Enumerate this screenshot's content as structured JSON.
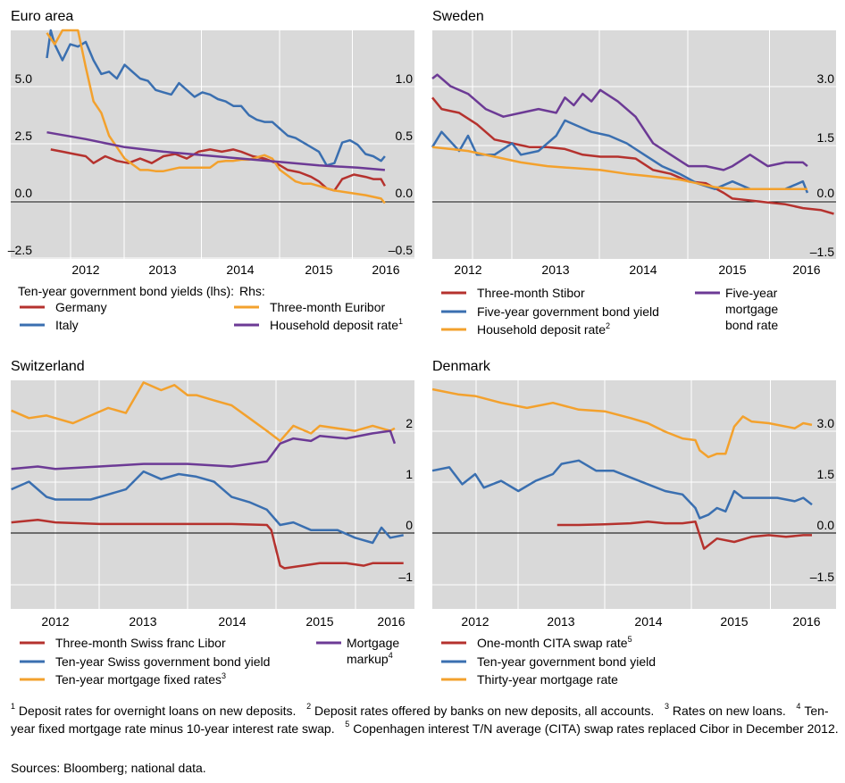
{
  "chart_data": [
    {
      "type": "line",
      "title": "Euro area",
      "x_ticks": [
        "2012",
        "2013",
        "2014",
        "2015",
        "2016"
      ],
      "xlim": [
        2011.5,
        2016.3
      ],
      "left_axis": {
        "ticks": [
          "5.0",
          "2.5",
          "0.0",
          "–2.5"
        ],
        "range": [
          -2.5,
          7.5
        ]
      },
      "right_axis": {
        "ticks": [
          "1.0",
          "0.5",
          "0.0",
          "–0.5"
        ],
        "range": [
          -0.5,
          1.5
        ]
      },
      "legend_heading_left": "Ten-year government bond yields (lhs):",
      "legend_heading_right": "Rhs:",
      "series": [
        {
          "name": "Germany",
          "axis": "left",
          "color": "#b5322e",
          "x": [
            2011.55,
            2011.7,
            2011.85,
            2012.0,
            2012.1,
            2012.25,
            2012.4,
            2012.55,
            2012.7,
            2012.85,
            2013.0,
            2013.15,
            2013.3,
            2013.45,
            2013.6,
            2013.75,
            2013.9,
            2014.0,
            2014.15,
            2014.3,
            2014.45,
            2014.6,
            2014.75,
            2014.9,
            2015.0,
            2015.1,
            2015.2,
            2015.3,
            2015.45,
            2015.6,
            2015.7,
            2015.8,
            2015.85
          ],
          "values": [
            1.9,
            1.8,
            1.7,
            1.6,
            1.3,
            1.6,
            1.4,
            1.3,
            1.5,
            1.3,
            1.6,
            1.7,
            1.5,
            1.8,
            1.9,
            1.8,
            1.9,
            1.8,
            1.6,
            1.5,
            1.3,
            1.0,
            0.9,
            0.7,
            0.5,
            0.2,
            0.1,
            0.6,
            0.8,
            0.7,
            0.6,
            0.6,
            0.3
          ]
        },
        {
          "name": "Italy",
          "axis": "left",
          "color": "#3a6fb0",
          "x": [
            2011.5,
            2011.55,
            2011.6,
            2011.7,
            2011.8,
            2011.9,
            2012.0,
            2012.1,
            2012.2,
            2012.3,
            2012.4,
            2012.5,
            2012.6,
            2012.7,
            2012.8,
            2012.9,
            2013.0,
            2013.1,
            2013.2,
            2013.3,
            2013.4,
            2013.5,
            2013.6,
            2013.7,
            2013.8,
            2013.9,
            2014.0,
            2014.1,
            2014.2,
            2014.3,
            2014.4,
            2014.5,
            2014.6,
            2014.7,
            2014.8,
            2014.9,
            2015.0,
            2015.1,
            2015.2,
            2015.3,
            2015.4,
            2015.5,
            2015.6,
            2015.7,
            2015.8,
            2015.85
          ],
          "values": [
            5.9,
            7.2,
            6.5,
            5.8,
            6.5,
            6.4,
            6.6,
            5.8,
            5.2,
            5.3,
            5.0,
            5.6,
            5.3,
            5.0,
            4.9,
            4.5,
            4.4,
            4.3,
            4.8,
            4.5,
            4.2,
            4.4,
            4.3,
            4.1,
            4.0,
            3.8,
            3.8,
            3.4,
            3.2,
            3.1,
            3.1,
            2.8,
            2.5,
            2.4,
            2.2,
            2.0,
            1.8,
            1.2,
            1.3,
            2.2,
            2.3,
            2.1,
            1.7,
            1.6,
            1.4,
            1.6
          ]
        },
        {
          "name": "Three-month Euribor",
          "axis": "right",
          "color": "#f3a12d",
          "x": [
            2011.5,
            2011.6,
            2011.7,
            2011.8,
            2011.9,
            2012.0,
            2012.1,
            2012.2,
            2012.3,
            2012.4,
            2012.5,
            2012.6,
            2012.7,
            2012.8,
            2012.9,
            2013.0,
            2013.2,
            2013.4,
            2013.5,
            2013.6,
            2013.7,
            2013.8,
            2013.9,
            2014.0,
            2014.1,
            2014.2,
            2014.3,
            2014.4,
            2014.5,
            2014.6,
            2014.7,
            2014.8,
            2014.9,
            2015.0,
            2015.2,
            2015.4,
            2015.6,
            2015.8,
            2015.85
          ],
          "values": [
            1.4,
            1.3,
            1.5,
            1.6,
            1.45,
            1.1,
            0.8,
            0.7,
            0.5,
            0.4,
            0.3,
            0.25,
            0.2,
            0.2,
            0.19,
            0.19,
            0.22,
            0.22,
            0.22,
            0.22,
            0.27,
            0.28,
            0.28,
            0.29,
            0.29,
            0.31,
            0.33,
            0.3,
            0.2,
            0.15,
            0.1,
            0.08,
            0.08,
            0.06,
            0.02,
            0.0,
            -0.02,
            -0.05,
            -0.09
          ]
        },
        {
          "name": "Household deposit rate",
          "name_sup": "1",
          "axis": "right",
          "color": "#6c3a95",
          "x": [
            2011.5,
            2012.0,
            2012.5,
            2013.0,
            2013.5,
            2014.0,
            2014.5,
            2015.0,
            2015.5,
            2015.85
          ],
          "values": [
            0.53,
            0.47,
            0.4,
            0.36,
            0.33,
            0.3,
            0.27,
            0.24,
            0.22,
            0.2
          ]
        }
      ]
    },
    {
      "type": "line",
      "title": "Sweden",
      "x_ticks": [
        "2012",
        "2013",
        "2014",
        "2015",
        "2016"
      ],
      "xlim": [
        2011.5,
        2016.3
      ],
      "right_axis": {
        "ticks": [
          "3.0",
          "1.5",
          "0.0",
          "–1.5"
        ],
        "range": [
          -1.5,
          4.5
        ]
      },
      "series": [
        {
          "name": "Three-month Stibor",
          "axis": "right",
          "color": "#b5322e",
          "x": [
            2011.5,
            2011.7,
            2011.9,
            2012.1,
            2012.3,
            2012.5,
            2012.7,
            2012.9,
            2013.1,
            2013.3,
            2013.5,
            2013.7,
            2013.9,
            2014.1,
            2014.3,
            2014.5,
            2014.7,
            2014.9,
            2015.0,
            2015.2,
            2015.4,
            2015.6,
            2015.8,
            2016.0,
            2016.15
          ],
          "values": [
            2.5,
            2.2,
            2.1,
            1.8,
            1.4,
            1.3,
            1.2,
            1.2,
            1.15,
            1.0,
            0.95,
            0.95,
            0.9,
            0.6,
            0.5,
            0.3,
            0.25,
            0.0,
            -0.15,
            -0.2,
            -0.25,
            -0.3,
            -0.4,
            -0.45,
            -0.55
          ]
        },
        {
          "name": "Five-year government bond yield",
          "axis": "right",
          "color": "#3a6fb0",
          "x": [
            2011.5,
            2011.7,
            2011.9,
            2012.0,
            2012.1,
            2012.3,
            2012.5,
            2012.6,
            2012.8,
            2013.0,
            2013.1,
            2013.3,
            2013.4,
            2013.6,
            2013.8,
            2014.0,
            2014.2,
            2014.4,
            2014.6,
            2014.8,
            2015.0,
            2015.2,
            2015.4,
            2015.6,
            2015.8,
            2015.85
          ],
          "values": [
            1.2,
            1.6,
            1.1,
            1.5,
            1.0,
            1.0,
            1.3,
            1.0,
            1.1,
            1.5,
            1.9,
            1.7,
            1.6,
            1.5,
            1.3,
            1.0,
            0.7,
            0.5,
            0.25,
            0.1,
            0.3,
            0.1,
            0.1,
            0.1,
            0.3,
            0.0
          ]
        },
        {
          "name": "Household deposit rate",
          "name_sup": "2",
          "axis": "right",
          "color": "#f3a12d",
          "x": [
            2011.5,
            2011.8,
            2012.0,
            2012.3,
            2012.6,
            2012.9,
            2013.2,
            2013.5,
            2013.8,
            2014.0,
            2014.2,
            2014.4,
            2014.6,
            2014.8,
            2015.0,
            2015.3,
            2015.6,
            2015.85
          ],
          "values": [
            1.2,
            1.15,
            1.1,
            0.95,
            0.8,
            0.7,
            0.65,
            0.6,
            0.5,
            0.45,
            0.4,
            0.35,
            0.25,
            0.15,
            0.1,
            0.1,
            0.1,
            0.1
          ]
        },
        {
          "name": "Five-year mortgage bond rate",
          "axis": "right",
          "color": "#6c3a95",
          "x": [
            2011.5,
            2011.65,
            2011.8,
            2012.0,
            2012.2,
            2012.4,
            2012.6,
            2012.8,
            2013.0,
            2013.1,
            2013.2,
            2013.3,
            2013.4,
            2013.5,
            2013.7,
            2013.9,
            2014.1,
            2014.3,
            2014.5,
            2014.7,
            2014.9,
            2015.0,
            2015.2,
            2015.4,
            2015.6,
            2015.8,
            2015.85
          ],
          "values": [
            3.0,
            3.1,
            2.8,
            2.6,
            2.2,
            2.0,
            2.1,
            2.2,
            2.1,
            2.5,
            2.3,
            2.6,
            2.4,
            2.7,
            2.4,
            2.0,
            1.3,
            1.0,
            0.7,
            0.7,
            0.6,
            0.7,
            1.0,
            0.7,
            0.8,
            0.8,
            0.7
          ]
        }
      ],
      "legend_third": "Five-year mortgage bond rate"
    },
    {
      "type": "line",
      "title": "Switzerland",
      "x_ticks": [
        "2012",
        "2013",
        "2014",
        "2015",
        "2016"
      ],
      "xlim": [
        2011.5,
        2016.3
      ],
      "right_axis": {
        "ticks": [
          "2",
          "1",
          "0",
          "–1"
        ],
        "range": [
          -1.5,
          3.0
        ]
      },
      "series": [
        {
          "name": "Three-month Swiss franc Libor",
          "axis": "right",
          "color": "#b5322e",
          "x": [
            2011.5,
            2011.8,
            2012.0,
            2012.5,
            2013.0,
            2013.5,
            2014.0,
            2014.4,
            2014.45,
            2014.55,
            2014.6,
            2014.8,
            2015.0,
            2015.3,
            2015.5,
            2015.6,
            2015.8,
            2015.95
          ],
          "values": [
            0.05,
            0.1,
            0.05,
            0.02,
            0.02,
            0.02,
            0.02,
            0.0,
            -0.1,
            -0.8,
            -0.85,
            -0.8,
            -0.75,
            -0.75,
            -0.8,
            -0.75,
            -0.75,
            -0.75
          ]
        },
        {
          "name": "Ten-year Swiss government bond yield",
          "axis": "right",
          "color": "#3a6fb0",
          "x": [
            2011.5,
            2011.7,
            2011.9,
            2012.0,
            2012.2,
            2012.4,
            2012.6,
            2012.8,
            2013.0,
            2013.2,
            2013.4,
            2013.6,
            2013.8,
            2014.0,
            2014.2,
            2014.4,
            2014.55,
            2014.7,
            2014.9,
            2015.0,
            2015.2,
            2015.4,
            2015.6,
            2015.7,
            2015.8,
            2015.95
          ],
          "values": [
            0.7,
            0.85,
            0.55,
            0.5,
            0.5,
            0.5,
            0.6,
            0.7,
            1.05,
            0.9,
            1.0,
            0.95,
            0.85,
            0.55,
            0.45,
            0.3,
            0.0,
            0.05,
            -0.1,
            -0.1,
            -0.1,
            -0.25,
            -0.35,
            -0.05,
            -0.25,
            -0.2
          ]
        },
        {
          "name": "Ten-year mortgage fixed rates",
          "name_sup": "3",
          "axis": "right",
          "color": "#f3a12d",
          "x": [
            2011.5,
            2011.7,
            2011.9,
            2012.0,
            2012.2,
            2012.4,
            2012.6,
            2012.8,
            2013.0,
            2013.2,
            2013.35,
            2013.5,
            2013.6,
            2013.8,
            2014.0,
            2014.2,
            2014.4,
            2014.55,
            2014.7,
            2014.9,
            2015.0,
            2015.2,
            2015.4,
            2015.6,
            2015.8,
            2015.85
          ],
          "values": [
            2.25,
            2.1,
            2.15,
            2.1,
            2.0,
            2.15,
            2.3,
            2.2,
            2.8,
            2.65,
            2.75,
            2.55,
            2.55,
            2.45,
            2.35,
            2.1,
            1.85,
            1.65,
            1.95,
            1.8,
            1.95,
            1.9,
            1.85,
            1.95,
            1.85,
            1.9
          ]
        },
        {
          "name": "Mortgage markup",
          "name_sup": "4",
          "axis": "right",
          "color": "#6c3a95",
          "x": [
            2011.5,
            2011.8,
            2012.0,
            2012.5,
            2013.0,
            2013.5,
            2014.0,
            2014.4,
            2014.55,
            2014.7,
            2014.9,
            2015.0,
            2015.3,
            2015.6,
            2015.8,
            2015.85
          ],
          "values": [
            1.1,
            1.15,
            1.1,
            1.15,
            1.2,
            1.2,
            1.15,
            1.25,
            1.6,
            1.7,
            1.65,
            1.75,
            1.7,
            1.8,
            1.85,
            1.6
          ]
        }
      ],
      "legend_fourth": "Mortgage markup"
    },
    {
      "type": "line",
      "title": "Denmark",
      "x_ticks": [
        "2012",
        "2013",
        "2014",
        "2015",
        "2016"
      ],
      "xlim": [
        2011.5,
        2016.3
      ],
      "right_axis": {
        "ticks": [
          "3.0",
          "1.5",
          "0.0",
          "–1.5"
        ],
        "range": [
          -1.5,
          4.5
        ]
      },
      "series": [
        {
          "name": "One-month CITA swap rate",
          "name_sup": "5",
          "axis": "right",
          "color": "#b5322e",
          "x": [
            2012.95,
            2013.2,
            2013.5,
            2013.8,
            2014.0,
            2014.2,
            2014.4,
            2014.55,
            2014.6,
            2014.65,
            2014.8,
            2015.0,
            2015.2,
            2015.4,
            2015.6,
            2015.8,
            2015.9
          ],
          "values": [
            0.0,
            0.0,
            0.02,
            0.05,
            0.1,
            0.05,
            0.05,
            0.1,
            -0.3,
            -0.7,
            -0.4,
            -0.5,
            -0.35,
            -0.3,
            -0.35,
            -0.3,
            -0.3
          ]
        },
        {
          "name": "Ten-year government bond yield",
          "axis": "right",
          "color": "#3a6fb0",
          "x": [
            2011.5,
            2011.7,
            2011.85,
            2012.0,
            2012.1,
            2012.3,
            2012.5,
            2012.7,
            2012.9,
            2013.0,
            2013.2,
            2013.4,
            2013.6,
            2013.8,
            2014.0,
            2014.2,
            2014.4,
            2014.55,
            2014.6,
            2014.7,
            2014.8,
            2014.9,
            2015.0,
            2015.1,
            2015.3,
            2015.5,
            2015.7,
            2015.8,
            2015.9
          ],
          "values": [
            1.6,
            1.7,
            1.2,
            1.5,
            1.1,
            1.3,
            1.0,
            1.3,
            1.5,
            1.8,
            1.9,
            1.6,
            1.6,
            1.4,
            1.2,
            1.0,
            0.9,
            0.5,
            0.2,
            0.3,
            0.5,
            0.4,
            1.0,
            0.8,
            0.8,
            0.8,
            0.7,
            0.8,
            0.6
          ]
        },
        {
          "name": "Thirty-year mortgage rate",
          "axis": "right",
          "color": "#f3a12d",
          "x": [
            2011.5,
            2011.8,
            2012.0,
            2012.3,
            2012.6,
            2012.9,
            2013.2,
            2013.5,
            2013.8,
            2014.0,
            2014.2,
            2014.4,
            2014.55,
            2014.6,
            2014.7,
            2014.8,
            2014.9,
            2015.0,
            2015.1,
            2015.2,
            2015.4,
            2015.6,
            2015.7,
            2015.8,
            2015.9
          ],
          "values": [
            4.0,
            3.85,
            3.8,
            3.6,
            3.45,
            3.6,
            3.4,
            3.35,
            3.15,
            3.0,
            2.75,
            2.55,
            2.5,
            2.2,
            2.0,
            2.1,
            2.1,
            2.9,
            3.2,
            3.05,
            3.0,
            2.9,
            2.85,
            3.0,
            2.95
          ]
        }
      ]
    }
  ],
  "footnotes": [
    {
      "mark": "1",
      "text": "Deposit rates for overnight loans on new deposits."
    },
    {
      "mark": "2",
      "text": "Deposit rates offered by banks on new deposits, all accounts."
    },
    {
      "mark": "3",
      "text": "Rates on new loans."
    },
    {
      "mark": "4",
      "text": "Ten-year fixed mortgage rate minus 10-year interest rate swap."
    },
    {
      "mark": "5",
      "text": "Copenhagen interest T/N average (CITA) swap rates replaced Cibor in December 2012."
    }
  ],
  "sources": "Sources: Bloomberg; national data."
}
